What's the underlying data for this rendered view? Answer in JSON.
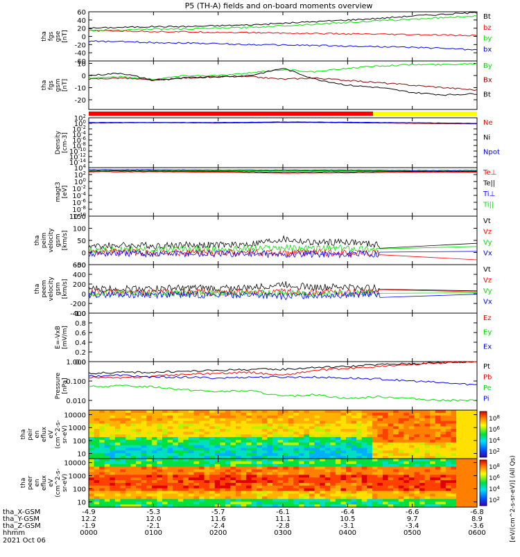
{
  "title": "P5 (TH-A) fields and on-board moments overview",
  "footer": {
    "date_label": "2021 Oct 06",
    "colorbar_unit": "[eV/(cm^2-s-sr-eV)] (All Qs)",
    "rows": [
      {
        "label": "tha_X-GSM",
        "values": [
          "-4.9",
          "-5.3",
          "-5.7",
          "-6.1",
          "-6.4",
          "-6.6",
          "-6.8"
        ]
      },
      {
        "label": "tha_Y-GSM",
        "values": [
          "12.2",
          "12.0",
          "11.6",
          "11.1",
          "10.5",
          "9.7",
          "8.9"
        ]
      },
      {
        "label": "tha_Z-GSM",
        "values": [
          "-1.9",
          "-2.1",
          "-2.4",
          "-2.8",
          "-3.1",
          "-3.4",
          "-3.6"
        ]
      },
      {
        "label": "hhmm",
        "values": [
          "0000",
          "0100",
          "0200",
          "0300",
          "0400",
          "0500",
          "0600"
        ]
      }
    ]
  },
  "colors": {
    "red": "#ff0000",
    "green": "#00e000",
    "blue": "#0000ff",
    "black": "#000000",
    "darkred": "#8b0000",
    "yellow": "#ffff00"
  },
  "chart_data": [
    {
      "type": "line",
      "id": "fgs_gse",
      "ylabel": [
        "tha",
        "fgs",
        "gse",
        "[nT]"
      ],
      "ylim": [
        -60,
        60
      ],
      "yticks": [
        {
          "v": 60,
          "t": "60"
        },
        {
          "v": 40,
          "t": "40"
        },
        {
          "v": 20,
          "t": "20"
        },
        {
          "v": 0,
          "t": "0"
        },
        {
          "v": -20,
          "t": "-20"
        },
        {
          "v": -40,
          "t": "-40"
        },
        {
          "v": -60,
          "t": "-60"
        }
      ],
      "x": [
        0,
        0.5,
        1,
        1.5,
        2,
        2.5,
        3,
        3.5,
        4,
        4.5,
        5,
        5.5,
        6
      ],
      "series": [
        {
          "name": "Bt",
          "color": "black",
          "values": [
            20,
            22,
            24,
            24,
            26,
            28,
            32,
            36,
            40,
            44,
            50,
            54,
            58
          ]
        },
        {
          "name": "bz",
          "color": "red",
          "values": [
            14,
            13,
            12,
            11,
            10,
            9,
            8,
            7,
            6,
            5,
            4,
            3,
            2
          ]
        },
        {
          "name": "by",
          "color": "green",
          "values": [
            14,
            16,
            18,
            18,
            20,
            22,
            26,
            30,
            34,
            38,
            42,
            46,
            50
          ]
        },
        {
          "name": "bx",
          "color": "blue",
          "values": [
            -12,
            -13,
            -15,
            -16,
            -18,
            -20,
            -21,
            -22,
            -24,
            -25,
            -27,
            -29,
            -33
          ]
        }
      ]
    },
    {
      "type": "line",
      "id": "fgs_gsm",
      "ylabel": [
        "tha",
        "fgs",
        "gsm",
        "[nT]"
      ],
      "ylim": [
        -28,
        12
      ],
      "yticks": [
        {
          "v": 10,
          "t": "10"
        },
        {
          "v": 0,
          "t": "0"
        },
        {
          "v": -10,
          "t": "-10"
        },
        {
          "v": -20,
          "t": "-20"
        }
      ],
      "x": [
        0,
        0.5,
        1,
        1.5,
        2,
        2.5,
        3,
        3.5,
        4,
        4.5,
        5,
        5.5,
        6
      ],
      "series": [
        {
          "name": "By",
          "color": "green",
          "values": [
            -2,
            -1,
            -3,
            0,
            0,
            2,
            5,
            3,
            6,
            8,
            9,
            9,
            10
          ]
        },
        {
          "name": "Bx",
          "color": "darkred",
          "values": [
            -3,
            -2,
            -4,
            -2,
            -1,
            -1,
            -3,
            -2,
            -4,
            -6,
            -8,
            -10,
            -12
          ]
        },
        {
          "name": "Bt",
          "color": "black",
          "values": [
            0,
            2,
            -4,
            -2,
            -1,
            0,
            6,
            -3,
            -8,
            -10,
            -14,
            -16,
            -15
          ]
        }
      ]
    },
    {
      "type": "line",
      "id": "density",
      "ylabel": [
        "Density",
        "[cm-3]"
      ],
      "ylim_log": [
        -16,
        2
      ],
      "yticks": [
        {
          "v": 2,
          "t": "10^2"
        },
        {
          "v": 0,
          "t": "10^0"
        },
        {
          "v": -2,
          "t": "10^-2"
        },
        {
          "v": -4,
          "t": "10^-4"
        },
        {
          "v": -6,
          "t": "10^-6"
        },
        {
          "v": -8,
          "t": "10^-8"
        },
        {
          "v": -10,
          "t": "10^-10"
        },
        {
          "v": -12,
          "t": "10^-12"
        },
        {
          "v": -14,
          "t": "10^-14"
        }
      ],
      "legend": [
        "Ne",
        "Ni",
        "Npot"
      ],
      "x": [
        0,
        1,
        2,
        3,
        4,
        5,
        6
      ],
      "series": [
        {
          "name": "Ne",
          "color": "red",
          "values": [
            0.1,
            0.2,
            0.1,
            0.3,
            0.2,
            0.0,
            -0.2
          ]
        },
        {
          "name": "Ni",
          "color": "black",
          "values": [
            0.2,
            0.3,
            0.2,
            0.4,
            0.3,
            0.1,
            -0.1
          ]
        },
        {
          "name": "Npot",
          "color": "blue",
          "values": [
            0.3,
            0.3,
            0.3,
            0.5,
            0.4,
            0.2,
            0.0
          ]
        }
      ]
    },
    {
      "type": "line",
      "id": "temp",
      "ylabel": [
        "magt3",
        "[eV]"
      ],
      "ylim_log": [
        -10,
        4
      ],
      "yticks": [
        {
          "v": 4,
          "t": "10^4"
        },
        {
          "v": 2,
          "t": "10^2"
        },
        {
          "v": 0,
          "t": "10^0"
        },
        {
          "v": -2,
          "t": "10^-2"
        },
        {
          "v": -4,
          "t": "10^-4"
        },
        {
          "v": -6,
          "t": "10^-6"
        },
        {
          "v": -8,
          "t": "10^-8"
        },
        {
          "v": -10,
          "t": "10^-10"
        }
      ],
      "legend": [
        "Te⊥",
        "Te||",
        "Ti⊥",
        "Ti||"
      ],
      "x": [
        0,
        1,
        2,
        3,
        4,
        5,
        6
      ],
      "series": [
        {
          "name": "Ti||",
          "color": "green",
          "values": [
            3.2,
            3.2,
            3.1,
            3.1,
            3.1,
            3.0,
            3.0
          ]
        },
        {
          "name": "Te||",
          "color": "black",
          "values": [
            3.0,
            3.0,
            2.9,
            2.7,
            2.8,
            2.9,
            2.9
          ]
        },
        {
          "name": "Te⊥",
          "color": "red",
          "values": [
            2.8,
            2.8,
            2.7,
            2.4,
            2.5,
            2.7,
            2.7
          ]
        },
        {
          "name": "Ti⊥",
          "color": "blue",
          "values": [
            3.4,
            3.4,
            3.3,
            3.3,
            3.3,
            3.2,
            3.2
          ]
        }
      ]
    },
    {
      "type": "line",
      "id": "peim_vel",
      "ylabel": [
        "tha",
        "peim",
        "velocity",
        "gsm",
        "[km/s]"
      ],
      "ylim": [
        -50,
        150
      ],
      "yticks": [
        {
          "v": 150,
          "t": "150"
        },
        {
          "v": 100,
          "t": "100"
        },
        {
          "v": 50,
          "t": "50"
        },
        {
          "v": 0,
          "t": "0"
        },
        {
          "v": -50,
          "t": "-50"
        }
      ],
      "legend": [
        "Vt",
        "Vz",
        "Vy",
        "Vx"
      ],
      "data_end_x": 4.5,
      "x": [
        0,
        0.5,
        1,
        1.5,
        2,
        2.5,
        3,
        3.5,
        4,
        4.5,
        6
      ],
      "series": [
        {
          "name": "Vt",
          "color": "black",
          "values": [
            25,
            30,
            28,
            32,
            30,
            35,
            55,
            40,
            45,
            30,
            38
          ]
        },
        {
          "name": "Vy",
          "color": "green",
          "values": [
            10,
            12,
            10,
            14,
            12,
            15,
            20,
            15,
            18,
            12,
            25
          ]
        },
        {
          "name": "Vz",
          "color": "red",
          "values": [
            0,
            2,
            -2,
            0,
            -2,
            2,
            -5,
            0,
            -2,
            0,
            -30
          ]
        },
        {
          "name": "Vx",
          "color": "blue",
          "values": [
            -5,
            -3,
            -5,
            -4,
            -6,
            -5,
            -10,
            -6,
            -8,
            -5,
            5
          ]
        }
      ]
    },
    {
      "type": "line",
      "id": "peem_vel",
      "ylabel": [
        "tha",
        "peem",
        "velocity",
        "gsm",
        "[km/s]"
      ],
      "ylim": [
        -400,
        600
      ],
      "yticks": [
        {
          "v": 600,
          "t": "600"
        },
        {
          "v": 400,
          "t": "400"
        },
        {
          "v": 200,
          "t": "200"
        },
        {
          "v": 0,
          "t": "0"
        },
        {
          "v": -200,
          "t": "-200"
        },
        {
          "v": -400,
          "t": "-400"
        }
      ],
      "legend": [
        "Vt",
        "Vz",
        "Vy",
        "Vx"
      ],
      "data_end_x": 4.5,
      "x": [
        0,
        0.5,
        1,
        1.5,
        2,
        2.5,
        3,
        3.5,
        4,
        4.5,
        6
      ],
      "series": [
        {
          "name": "Vt",
          "color": "black",
          "values": [
            100,
            110,
            105,
            115,
            110,
            120,
            200,
            130,
            140,
            110,
            60
          ]
        },
        {
          "name": "Vz",
          "color": "red",
          "values": [
            20,
            25,
            20,
            30,
            25,
            30,
            40,
            35,
            30,
            25,
            40
          ]
        },
        {
          "name": "Vy",
          "color": "green",
          "values": [
            0,
            10,
            5,
            10,
            5,
            15,
            0,
            10,
            5,
            10,
            20
          ]
        },
        {
          "name": "Vx",
          "color": "blue",
          "values": [
            -20,
            -15,
            -20,
            -15,
            -20,
            -15,
            -60,
            -25,
            -20,
            -15,
            -10
          ]
        }
      ]
    },
    {
      "type": "line",
      "id": "efield",
      "ylabel": [
        "E=-VxB",
        "[mV/m]"
      ],
      "ylim": [
        0,
        1
      ],
      "yticks": [
        {
          "v": 1,
          "t": "1.0"
        },
        {
          "v": 0.8,
          "t": "0.8"
        },
        {
          "v": 0.6,
          "t": "0.6"
        },
        {
          "v": 0.4,
          "t": "0.4"
        },
        {
          "v": 0.2,
          "t": "0.2"
        },
        {
          "v": 0,
          "t": "0.0"
        }
      ],
      "legend": [
        "Ez",
        "Ey",
        "Ex"
      ],
      "series": []
    },
    {
      "type": "line",
      "id": "pressure",
      "ylabel": [
        "Pressure",
        "[nPa]"
      ],
      "ylim_log": [
        -2.5,
        0
      ],
      "yticks": [
        {
          "v": 0,
          "t": "1.000"
        },
        {
          "v": -1,
          "t": "0.100"
        },
        {
          "v": -2,
          "t": "0.010"
        }
      ],
      "legend": [
        "Pt",
        "Pb",
        "Pe",
        "Pi"
      ],
      "x": [
        0,
        0.5,
        1,
        1.5,
        2,
        2.5,
        3,
        3.5,
        4,
        4.5,
        5,
        5.5,
        6
      ],
      "series": [
        {
          "name": "Pt",
          "color": "black",
          "values": [
            -0.6,
            -0.55,
            -0.55,
            -0.5,
            -0.45,
            -0.4,
            -0.4,
            -0.3,
            -0.25,
            -0.15,
            -0.1,
            -0.05,
            0.0
          ]
        },
        {
          "name": "Pb",
          "color": "red",
          "values": [
            -0.8,
            -0.85,
            -0.75,
            -0.65,
            -0.6,
            -0.55,
            -0.7,
            -0.45,
            -0.35,
            -0.25,
            -0.15,
            -0.05,
            0.0
          ]
        },
        {
          "name": "Pi",
          "color": "blue",
          "values": [
            -0.75,
            -0.7,
            -0.8,
            -0.8,
            -0.85,
            -0.8,
            -0.8,
            -0.8,
            -0.85,
            -0.9,
            -1.0,
            -1.1,
            -1.2
          ]
        },
        {
          "name": "Pe",
          "color": "green",
          "values": [
            -1.3,
            -1.25,
            -1.3,
            -1.45,
            -1.55,
            -1.5,
            -1.8,
            -1.7,
            -1.9,
            -1.8,
            -1.9,
            -2.0,
            -2.0
          ]
        }
      ]
    },
    {
      "type": "heatmap",
      "id": "peir",
      "ylabel": [
        "tha",
        "peir",
        "en",
        "eflux",
        "eV",
        "(cm^2-s-",
        "sr-eV)"
      ],
      "ylim_log": [
        0.6,
        4.35
      ],
      "yticks": [
        {
          "v": 4,
          "t": "10000"
        },
        {
          "v": 3,
          "t": "1000"
        },
        {
          "v": 2,
          "t": "100"
        },
        {
          "v": 1,
          "t": "10"
        }
      ],
      "colorbar_ticks": [
        "10^8",
        "10^6",
        "10^4",
        "10^2"
      ]
    },
    {
      "type": "heatmap",
      "id": "peer",
      "ylabel": [
        "tha",
        "peer",
        "en",
        "eflux",
        "eV",
        "(cm^2-s-",
        "sr-eV)"
      ],
      "ylim_log": [
        0.6,
        4.3
      ],
      "yticks": [
        {
          "v": 4,
          "t": "10000"
        },
        {
          "v": 3,
          "t": "1000"
        },
        {
          "v": 2,
          "t": "100"
        },
        {
          "v": 1,
          "t": "10"
        }
      ],
      "colorbar_ticks": [
        "10^8",
        "10^6",
        "10^4",
        "10^2"
      ]
    }
  ]
}
